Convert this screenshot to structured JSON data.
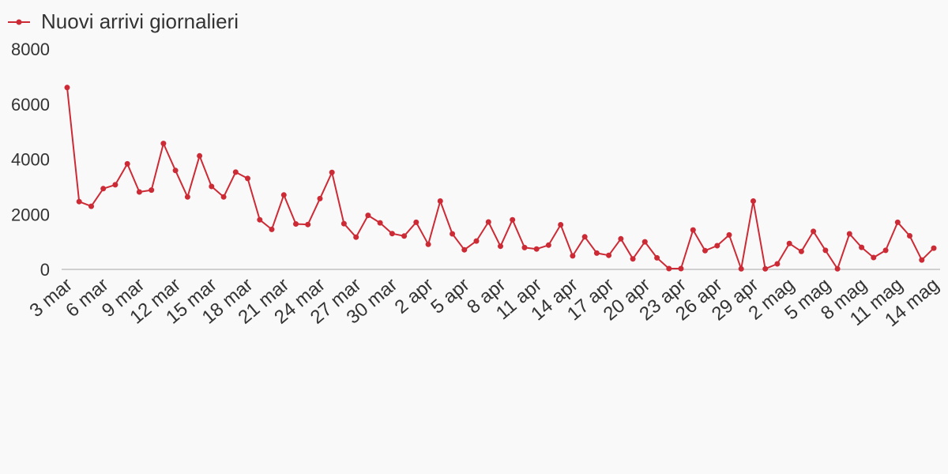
{
  "colors": {
    "background": "#f9f9f9",
    "series": "#cc2b36",
    "baseline": "#d0d0d0",
    "text": "#333333"
  },
  "chart_data": {
    "type": "line",
    "legend": {
      "position": "top-left",
      "entries": [
        "Nuovi arrivi giornalieri"
      ]
    },
    "grid": false,
    "xlabel": "",
    "ylabel": "",
    "ylim": [
      0,
      8000
    ],
    "y_ticks": [
      "0",
      "2000",
      "4000",
      "6000",
      "8000"
    ],
    "x_ticks": [
      "3 mar",
      "6 mar",
      "9 mar",
      "12 mar",
      "15 mar",
      "18 mar",
      "21 mar",
      "24 mar",
      "27 mar",
      "30 mar",
      "2 apr",
      "5 apr",
      "8 apr",
      "11 apr",
      "14 apr",
      "17 apr",
      "20 apr",
      "23 apr",
      "26 apr",
      "29 apr",
      "2 mag",
      "5 mag",
      "8 mag",
      "11 mag",
      "14 mag"
    ],
    "x_start": "3 mar",
    "x_end": "14 mag",
    "series": [
      {
        "name": "Nuovi arrivi giornalieri",
        "values": [
          6600,
          2460,
          2290,
          2930,
          3070,
          3830,
          2810,
          2880,
          4570,
          3590,
          2630,
          4120,
          3010,
          2630,
          3530,
          3300,
          1800,
          1450,
          2700,
          1650,
          1630,
          2570,
          3520,
          1660,
          1170,
          1960,
          1690,
          1300,
          1210,
          1710,
          910,
          2480,
          1290,
          710,
          1030,
          1720,
          840,
          1800,
          790,
          740,
          880,
          1620,
          490,
          1180,
          590,
          510,
          1110,
          380,
          1000,
          420,
          30,
          30,
          1430,
          680,
          860,
          1250,
          20,
          2480,
          20,
          200,
          940,
          650,
          1380,
          690,
          20,
          1290,
          800,
          430,
          690,
          1710,
          1220,
          340,
          770
        ]
      }
    ]
  }
}
